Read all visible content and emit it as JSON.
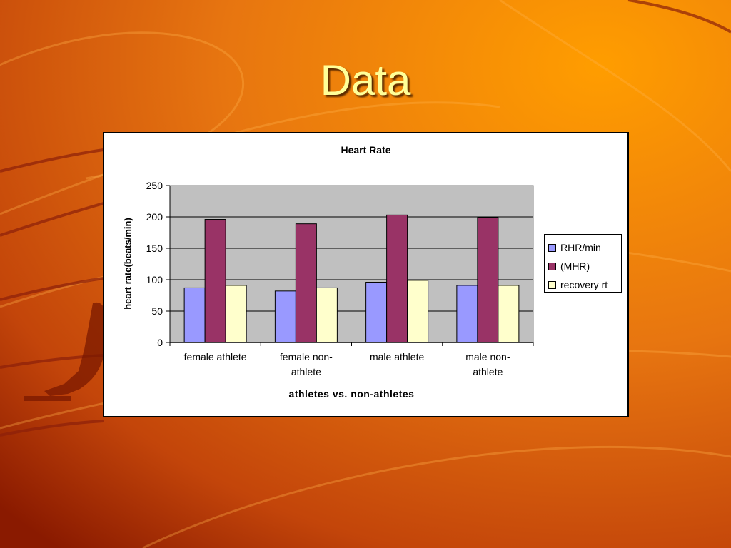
{
  "slide": {
    "title": "Data",
    "colors": {
      "title_text": "#ffff99",
      "background_light": "#ff9900",
      "background_dark": "#8a1a00"
    }
  },
  "chart_data": {
    "type": "bar",
    "title": "Heart Rate",
    "xlabel": "athletes vs. non-athletes",
    "ylabel": "heart rate(beats/min)",
    "categories": [
      "female athlete",
      "female non-athlete",
      "male athlete",
      "male non-athlete"
    ],
    "category_display": [
      [
        "female athlete"
      ],
      [
        "female non-",
        "athlete"
      ],
      [
        "male athlete"
      ],
      [
        "male non-",
        "athlete"
      ]
    ],
    "series": [
      {
        "name": "RHR/min",
        "color": "#9999ff",
        "values": [
          87,
          82,
          96,
          91
        ]
      },
      {
        "name": "(MHR)",
        "color": "#993366",
        "values": [
          196,
          189,
          203,
          199
        ]
      },
      {
        "name": "recovery rt",
        "color": "#ffffcc",
        "values": [
          91,
          87,
          99,
          91
        ]
      }
    ],
    "ylim": [
      0,
      250
    ],
    "yticks": [
      0,
      50,
      100,
      150,
      200,
      250
    ],
    "grid": true,
    "plot_background": "#c0c0c0",
    "legend_position": "right"
  }
}
